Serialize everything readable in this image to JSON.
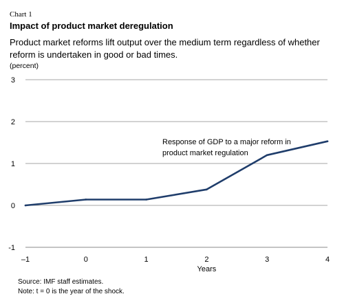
{
  "chart_label": "Chart 1",
  "title": "Impact of product market deregulation",
  "subtitle": "Product market reforms lift output over the medium term regardless of whether reform is undertaken in good or bad times.",
  "unit": "(percent)",
  "source": "Source: IMF staff estimates.",
  "note": "Note: t = 0 is the year of the shock.",
  "colors": {
    "series": "#1f3d6b",
    "grid": "#a6a6a6",
    "axis": "#888888"
  },
  "chart_data": {
    "type": "line",
    "x": [
      -1,
      0,
      1,
      2,
      3,
      4
    ],
    "x_tick_labels": [
      "–1",
      "0",
      "1",
      "2",
      "3",
      "4"
    ],
    "xlabel": "Years",
    "ylabel": "",
    "ylim": [
      -1,
      3
    ],
    "y_ticks": [
      -1,
      0,
      1,
      2,
      3
    ],
    "y_tick_labels": [
      "-1",
      "0",
      "1",
      "2",
      "3"
    ],
    "grid": true,
    "series": [
      {
        "values": [
          0.0,
          0.14,
          0.14,
          0.38,
          1.2,
          1.53
        ]
      }
    ],
    "annotations": [
      {
        "lines": [
          "Response of GDP to a major reform in",
          "product market regulation"
        ]
      }
    ]
  }
}
